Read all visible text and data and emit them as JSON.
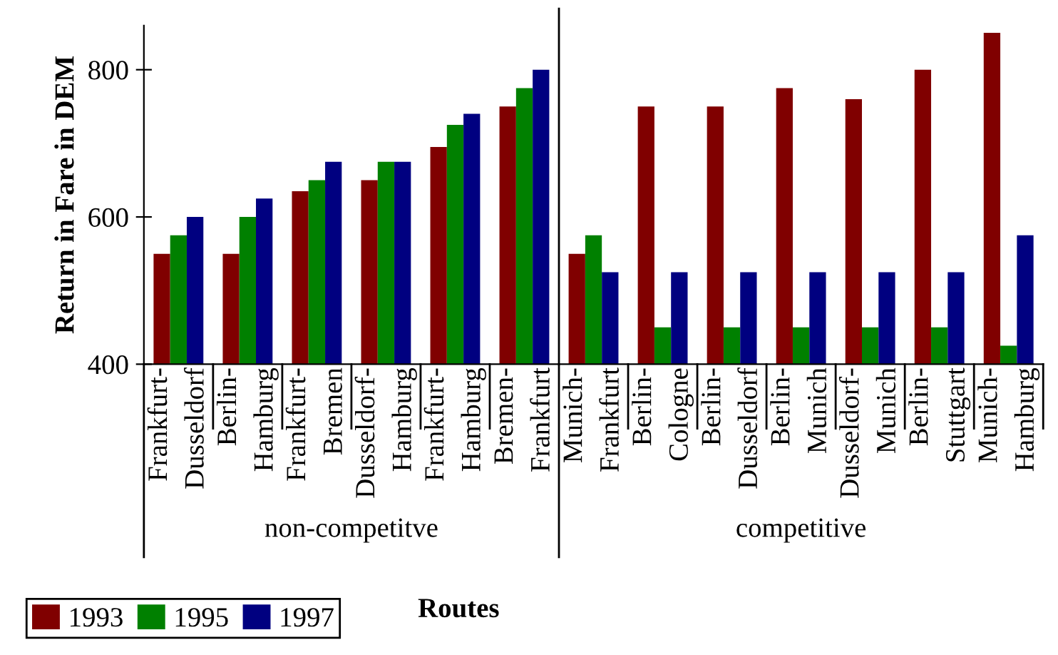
{
  "chart_data": {
    "type": "bar",
    "xlabel": "Routes",
    "ylabel": "Return in Fare in DEM",
    "categories": [
      "Frankfurt-\nDusseldorf",
      "Berlin-\nHamburg",
      "Frankfurt-\nBremen",
      "Dusseldorf-\nHamburg",
      "Frankfurt-\nHamburg",
      "Bremen-\nFrankfurt",
      "Munich-\nFrankfurt",
      "Berlin-\nCologne",
      "Berlin-\nDusseldorf",
      "Berlin-\nMunich",
      "Dusseldorf-\nMunich",
      "Berlin-\nStuttgart",
      "Munich-\nHamburg"
    ],
    "series": [
      {
        "name": "1993",
        "color": "#800000",
        "values": [
          550,
          550,
          635,
          650,
          695,
          750,
          550,
          750,
          750,
          775,
          760,
          800,
          850
        ]
      },
      {
        "name": "1995",
        "color": "#008000",
        "values": [
          575,
          600,
          650,
          675,
          725,
          775,
          575,
          450,
          450,
          450,
          450,
          450,
          425
        ]
      },
      {
        "name": "1997",
        "color": "#000080",
        "values": [
          600,
          625,
          675,
          675,
          740,
          800,
          525,
          525,
          525,
          525,
          525,
          525,
          575
        ]
      }
    ],
    "annotations": [
      "non-competitve",
      "competitive"
    ],
    "ylim": [
      400,
      860
    ],
    "yticks": [
      400,
      600,
      800
    ],
    "grid": false,
    "legend": "bottom left"
  }
}
